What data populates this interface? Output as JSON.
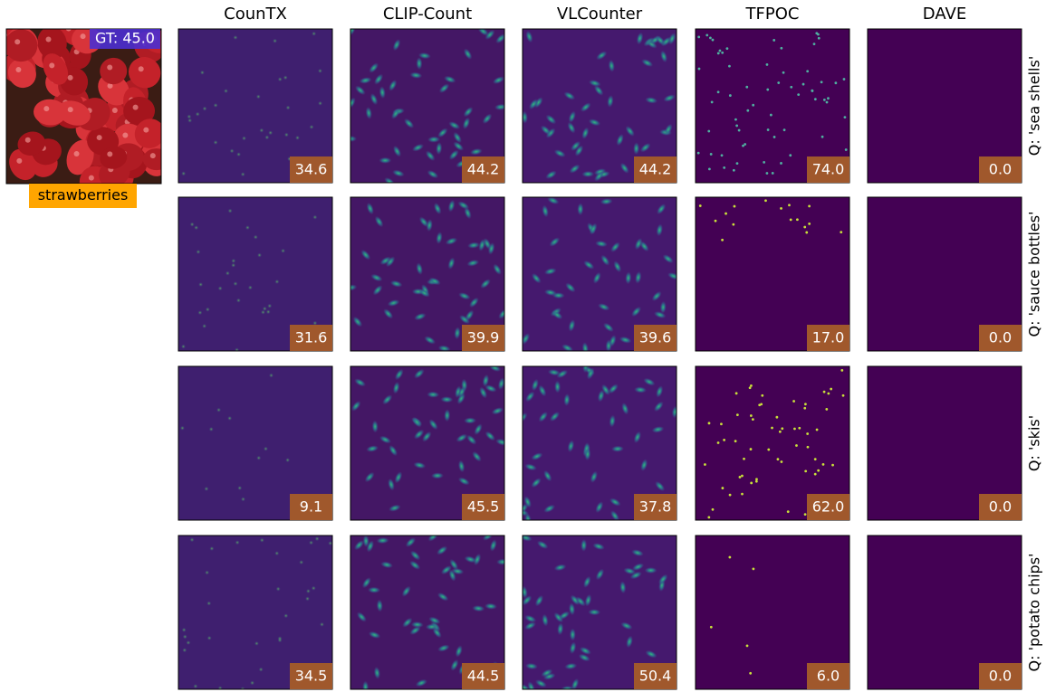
{
  "image": {
    "gt_label": "GT: 45.0",
    "class_label": "strawberries"
  },
  "columns": [
    "CounTX",
    "CLIP-Count",
    "VLCounter",
    "TFPOC",
    "DAVE"
  ],
  "rows": [
    {
      "query": "Q: 'sea shells'",
      "counts": [
        "34.6",
        "44.2",
        "44.2",
        "74.0",
        "0.0"
      ]
    },
    {
      "query": "Q: 'sauce bottles'",
      "counts": [
        "31.6",
        "39.9",
        "39.6",
        "17.0",
        "0.0"
      ]
    },
    {
      "query": "Q: 'skis'",
      "counts": [
        "9.1",
        "45.5",
        "37.8",
        "62.0",
        "0.0"
      ]
    },
    {
      "query": "Q: 'potato chips'",
      "counts": [
        "34.5",
        "44.5",
        "50.4",
        "6.0",
        "0.0"
      ]
    }
  ]
}
